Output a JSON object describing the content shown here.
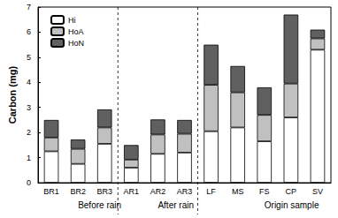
{
  "chart_data": {
    "type": "bar",
    "stacked": true,
    "y_label": "Carbon (mg)",
    "categories": [
      "BR1",
      "BR2",
      "BR3",
      "AR1",
      "AR2",
      "AR3",
      "LF",
      "MS",
      "FS",
      "CP",
      "SV"
    ],
    "series": [
      {
        "name": "Hi",
        "color": "#ffffff",
        "values": [
          1.25,
          0.75,
          1.55,
          0.6,
          1.15,
          1.2,
          2.05,
          2.2,
          1.65,
          2.6,
          5.3
        ]
      },
      {
        "name": "HoA",
        "color": "#c0c0c0",
        "values": [
          0.55,
          0.6,
          0.65,
          0.32,
          0.77,
          0.75,
          1.85,
          1.4,
          1.05,
          1.35,
          0.45
        ]
      },
      {
        "name": "HoN",
        "color": "#606060",
        "values": [
          0.7,
          0.37,
          0.72,
          0.58,
          0.6,
          0.55,
          1.6,
          1.05,
          1.1,
          2.75,
          0.35
        ]
      }
    ],
    "groups": [
      {
        "label": "Before rain",
        "categories": [
          "BR1",
          "BR2",
          "BR3"
        ]
      },
      {
        "label": "After rain",
        "categories": [
          "AR1",
          "AR2",
          "AR3"
        ]
      },
      {
        "label": "Origin sample",
        "categories": [
          "LF",
          "MS",
          "FS",
          "CP",
          "SV"
        ]
      }
    ],
    "ylim": [
      0,
      7
    ],
    "yticks": [
      0,
      1,
      2,
      3,
      4,
      5,
      6,
      7
    ],
    "legend": "upper left",
    "grid": false
  }
}
